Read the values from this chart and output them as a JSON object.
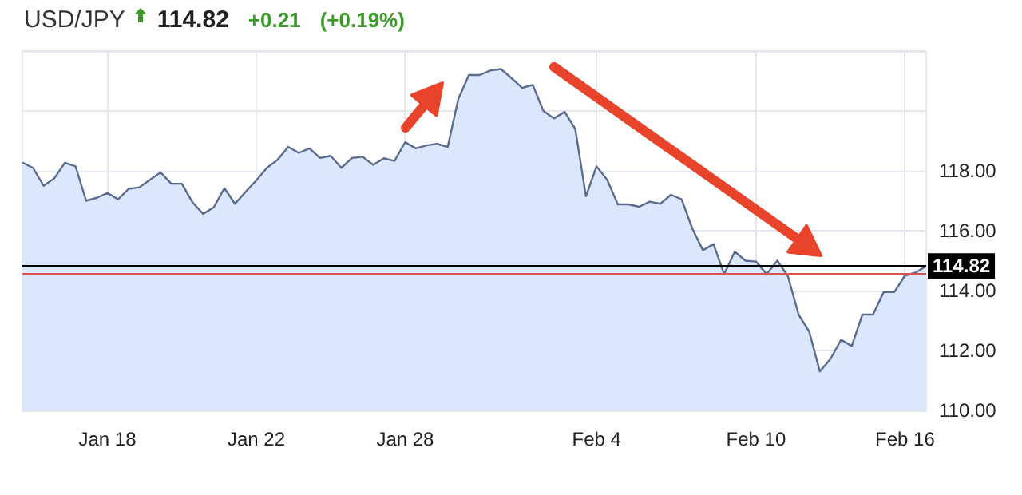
{
  "chart_data": {
    "type": "area",
    "title": "USD/JPY",
    "annotations": [
      "114.82",
      "+0.21",
      "(+0.19%)"
    ],
    "categories": [
      null,
      null,
      null,
      null,
      null,
      null,
      null,
      null,
      "Jan 18",
      null,
      null,
      null,
      null,
      null,
      null,
      null,
      null,
      null,
      null,
      null,
      null,
      null,
      "Jan 22",
      null,
      null,
      null,
      null,
      null,
      null,
      null,
      null,
      null,
      null,
      null,
      null,
      null,
      "Jan 28",
      null,
      null,
      null,
      null,
      null,
      null,
      null,
      null,
      null,
      null,
      null,
      null,
      null,
      null,
      null,
      null,
      null,
      "Feb 4",
      null,
      null,
      null,
      null,
      null,
      null,
      null,
      null,
      null,
      null,
      null,
      null,
      null,
      null,
      "Feb 10",
      null,
      null,
      null,
      null,
      null,
      null,
      null,
      null,
      null,
      null,
      null,
      null,
      null,
      "Feb 16",
      null,
      null
    ],
    "series": [
      {
        "color": "#5b6b8f",
        "values": [
          118.28,
          118.1,
          117.5,
          117.75,
          118.27,
          118.15,
          117.0,
          117.1,
          117.26,
          117.05,
          117.4,
          117.45,
          117.7,
          117.95,
          117.57,
          117.57,
          116.95,
          116.56,
          116.78,
          117.42,
          116.9,
          117.3,
          117.68,
          118.1,
          118.37,
          118.8,
          118.6,
          118.75,
          118.43,
          118.5,
          118.1,
          118.43,
          118.47,
          118.2,
          118.42,
          118.33,
          118.96,
          118.75,
          118.85,
          118.9,
          118.8,
          120.4,
          121.2,
          121.2,
          121.35,
          121.4,
          121.1,
          120.77,
          120.87,
          120.0,
          119.75,
          119.97,
          119.4,
          117.15,
          118.15,
          117.7,
          116.88,
          116.88,
          116.8,
          116.97,
          116.9,
          117.2,
          117.05,
          116.08,
          115.35,
          115.55,
          114.55,
          115.3,
          115.0,
          114.97,
          114.55,
          115.0,
          114.48,
          113.2,
          112.63,
          111.3,
          111.72,
          112.36,
          112.15,
          113.2,
          113.2,
          113.95,
          113.95,
          114.5,
          114.6,
          114.82
        ]
      }
    ],
    "ylim": [
      110,
      122
    ],
    "yticks": [
      {
        "value": 110,
        "label": "110.00"
      },
      {
        "value": 112,
        "label": "112.00"
      },
      {
        "value": 114,
        "label": "114.00"
      },
      {
        "value": 116,
        "label": "116.00"
      },
      {
        "value": 118,
        "label": "118.00"
      },
      {
        "value": 120,
        "label": null
      },
      {
        "value": 122,
        "label": null
      }
    ],
    "ref_lines": [
      {
        "axis": "y",
        "value": 114.82,
        "label": "114.82",
        "color": "#000000"
      },
      {
        "axis": "y",
        "value": 114.6,
        "label": null,
        "color": "#d9534f"
      }
    ],
    "grid": true
  }
}
